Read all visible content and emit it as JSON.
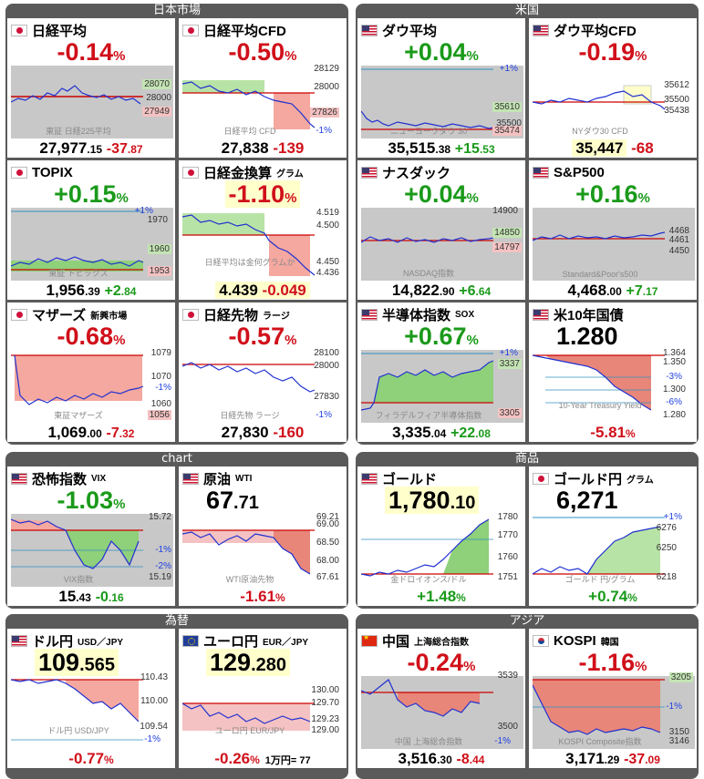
{
  "sections": {
    "japan": "日本市場",
    "us": "米国",
    "chart": "chart",
    "commodity": "商品",
    "fx": "為替",
    "asia": "アジア"
  },
  "colors": {
    "up": "#1a9a1a",
    "down": "#d0101a",
    "panel": "#5a5a5a",
    "up_fill": "#8fd07a",
    "down_fill": "#e8867a"
  },
  "cards": {
    "nikkei": {
      "name": "日経平均",
      "flag": "jp-flag",
      "change": "-0.14",
      "pct": "%",
      "labels": [
        "28070",
        "28000",
        "27949"
      ],
      "watermark": "東証 日経225平均",
      "value_int": "27,977",
      "value_dec": ".15",
      "diff_int": "-37",
      "diff_dec": ".87"
    },
    "nikkei_cfd": {
      "name": "日経平均CFD",
      "flag": "jp-flag",
      "change": "-0.50",
      "pct": "%",
      "labels": [
        "28129",
        "28000",
        "27826",
        "-1%"
      ],
      "watermark": "日経平均 CFD",
      "value": "27,838",
      "diff": "-139"
    },
    "dow": {
      "name": "ダウ平均",
      "flag": "us-flag",
      "change": "+0.04",
      "pct": "%",
      "labels": [
        "+1%",
        "35610",
        "35500",
        "35474"
      ],
      "watermark": "ニューヨークダウ 30",
      "value_int": "35,515",
      "value_dec": ".38",
      "diff_int": "+15",
      "diff_dec": ".53"
    },
    "dow_cfd": {
      "name": "ダウ平均CFD",
      "flag": "us-flag",
      "change": "-0.19",
      "pct": "%",
      "labels": [
        "35612",
        "35500",
        "35438"
      ],
      "watermark": "NYダウ30 CFD",
      "value": "35,447",
      "diff": "-68"
    },
    "topix": {
      "name": "TOPIX",
      "flag": "jp-flag",
      "change": "+0.15",
      "pct": "%",
      "labels": [
        "+1%",
        "1970",
        "1960",
        "1953"
      ],
      "watermark": "東証 トピックス",
      "value_int": "1,956",
      "value_dec": ".39",
      "diff_int": "+2",
      "diff_dec": ".84"
    },
    "gold_nikkei": {
      "name": "日経金換算",
      "sub": "グラム",
      "flag": "jp-flag",
      "change": "-1.10",
      "pct": "%",
      "labels": [
        "4.519",
        "4.500",
        "4.450",
        "4.436"
      ],
      "watermark": "日経平均は金何グラムか",
      "value": "4.439",
      "diff": "-0.049"
    },
    "nasdaq": {
      "name": "ナスダック",
      "flag": "us-flag",
      "change": "+0.04",
      "pct": "%",
      "labels": [
        "14900",
        "14850",
        "14797"
      ],
      "watermark": "NASDAQ指数",
      "value_int": "14,822",
      "value_dec": ".90",
      "diff_int": "+6",
      "diff_dec": ".64"
    },
    "sp500": {
      "name": "S&P500",
      "flag": "us-flag",
      "change": "+0.16",
      "pct": "%",
      "labels": [
        "4468",
        "4461",
        "4450"
      ],
      "watermark": "Standard&Poor's500",
      "value_int": "4,468",
      "value_dec": ".00",
      "diff_int": "+7",
      "diff_dec": ".17"
    },
    "mothers": {
      "name": "マザーズ",
      "sub": "新興市場",
      "flag": "jp-flag",
      "change": "-0.68",
      "pct": "%",
      "labels": [
        "1079",
        "1070",
        "-1%",
        "1060",
        "1056"
      ],
      "watermark": "東証マザーズ",
      "value_int": "1,069",
      "value_dec": ".00",
      "diff_int": "-7",
      "diff_dec": ".32"
    },
    "nikkei_fut": {
      "name": "日経先物",
      "sub": "ラージ",
      "flag": "jp-flag",
      "change": "-0.57",
      "pct": "%",
      "labels": [
        "28100",
        "28000",
        "27830",
        "-1%"
      ],
      "watermark": "日経先物 ラージ",
      "value": "27,830",
      "diff": "-160"
    },
    "sox": {
      "name": "半導体指数",
      "sub": "SOX",
      "flag": "us-flag",
      "change": "+0.67",
      "pct": "%",
      "labels": [
        "+1%",
        "3337",
        "3305"
      ],
      "watermark": "フィラデルフィア半導体指数",
      "value_int": "3,335",
      "value_dec": ".04",
      "diff_int": "+22",
      "diff_dec": ".08"
    },
    "us10y": {
      "name": "米10年国債",
      "flag": "us-flag",
      "value": "1.280",
      "labels": [
        "1.364",
        "1.350",
        "-3%",
        "1.300",
        "-6%",
        "1.280"
      ],
      "watermark": "10-Year Treasury Yield",
      "change": "-5.81",
      "pct": "%"
    },
    "vix": {
      "name": "恐怖指数",
      "sub": "VIX",
      "flag": "us-flag",
      "change": "-1.03",
      "pct": "%",
      "labels": [
        "15.72",
        "-1%",
        "-2%",
        "15.19"
      ],
      "watermark": "VIX指数",
      "value_int": "15",
      "value_dec": ".43",
      "diff_int": "-0",
      "diff_dec": ".16"
    },
    "wti": {
      "name": "原油",
      "sub": "WTI",
      "flag": "us-flag",
      "value_int": "67",
      "value_dec": ".71",
      "labels": [
        "69.21",
        "69.00",
        "68.50",
        "68.00",
        "67.61"
      ],
      "watermark": "WTI原油先物",
      "change": "-1.61",
      "pct": "%"
    },
    "gold": {
      "name": "ゴールド",
      "flag": "us-flag",
      "value_int": "1,780",
      "value_dec": ".10",
      "labels": [
        "1780",
        "1770",
        "1760",
        "1751"
      ],
      "watermark": "金ドロイオンス/ドル",
      "change": "+1.48",
      "pct": "%"
    },
    "gold_yen": {
      "name": "ゴールド円",
      "sub": "グラム",
      "flag": "jp-flag",
      "value": "6,271",
      "labels": [
        "+1%",
        "6276",
        "6250",
        "6218"
      ],
      "watermark": "ゴールド 円/グラム",
      "change": "+0.74",
      "pct": "%"
    },
    "usdjpy": {
      "name": "ドル円",
      "sub": "USD／JPY",
      "flag": "us-flag",
      "value_int": "109",
      "value_dec": ".565",
      "labels": [
        "110.43",
        "110.00",
        "109.54",
        "-1%"
      ],
      "watermark": "ドル円 USD/JPY",
      "change": "-0.77",
      "pct": "%"
    },
    "eurjpy": {
      "name": "ユーロ円",
      "sub": "EUR／JPY",
      "flag": "eu-flag",
      "value_int": "129",
      "value_dec": ".280",
      "labels": [
        "130.00",
        "129.70",
        "129.23",
        "129.00"
      ],
      "watermark": "ユーロ円 EUR/JPY",
      "change": "-0.26",
      "pct": "%",
      "extra": "1万円= 77"
    },
    "shanghai": {
      "name": "中国",
      "sub": "上海総合指数",
      "flag": "cn-flag",
      "change": "-0.24",
      "pct": "%",
      "labels": [
        "3539",
        "3500",
        "-1%"
      ],
      "watermark": "中国 上海総合指数",
      "value_int": "3,516",
      "value_dec": ".30",
      "diff_int": "-8",
      "diff_dec": ".44"
    },
    "kospi": {
      "name": "KOSPI",
      "sub": "韓国",
      "flag": "kr-flag",
      "change": "-1.16",
      "pct": "%",
      "labels": [
        "3205",
        "-1%",
        "3150",
        "3146"
      ],
      "watermark": "KOSPI Composite指数",
      "value_int": "3,171",
      "value_dec": ".29",
      "diff_int": "-37",
      "diff_dec": ".09"
    }
  }
}
